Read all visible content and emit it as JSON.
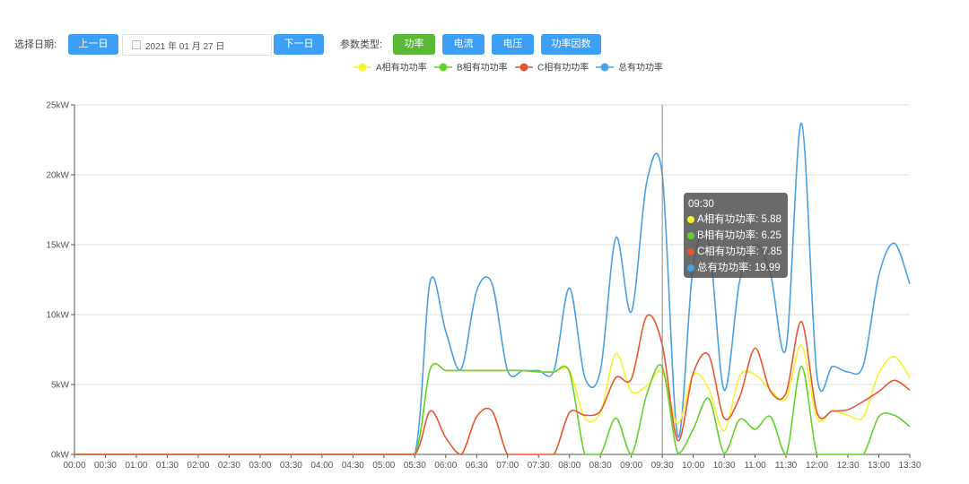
{
  "toolbar": {
    "date_label": "选择日期:",
    "prev_label": "上一日",
    "date_value": "2021 年 01 月 27 日",
    "next_label": "下一日",
    "param_label": "参数类型:",
    "types": [
      {
        "label": "功率",
        "active": true
      },
      {
        "label": "电流",
        "active": false
      },
      {
        "label": "电压",
        "active": false
      },
      {
        "label": "功率因数",
        "active": false
      }
    ]
  },
  "tooltip": {
    "time": "09:30",
    "rows": [
      "A相有功功率: 5.88",
      "B相有功功率: 6.25",
      "C相有功功率: 7.85",
      "总有功功率: 19.99"
    ]
  },
  "colors": {
    "A": "#f7f02c",
    "B": "#63d12c",
    "C": "#e8542d",
    "total": "#4aa0e0",
    "active_button": "#5bb834",
    "button": "#3d9ff5"
  },
  "chart_data": {
    "type": "line",
    "title": "",
    "xlabel": "",
    "ylabel": "",
    "ylim": [
      0,
      25
    ],
    "yticks": [
      "0kW",
      "5kW",
      "10kW",
      "15kW",
      "20kW",
      "25kW"
    ],
    "yunit": "kW",
    "grid": true,
    "legend_position": "top-center",
    "x": [
      "00:00",
      "00:30",
      "01:00",
      "01:30",
      "02:00",
      "02:30",
      "03:00",
      "03:30",
      "04:00",
      "04:30",
      "05:00",
      "05:30",
      "05:45",
      "06:00",
      "06:15",
      "06:30",
      "06:45",
      "07:00",
      "07:15",
      "07:30",
      "07:45",
      "08:00",
      "08:15",
      "08:30",
      "08:45",
      "09:00",
      "09:15",
      "09:30",
      "09:45",
      "10:00",
      "10:15",
      "10:30",
      "10:45",
      "11:00",
      "11:15",
      "11:30",
      "11:45",
      "12:00",
      "12:15",
      "12:30",
      "12:45",
      "13:00",
      "13:15",
      "13:30"
    ],
    "xticks": [
      "00:00",
      "00:30",
      "01:00",
      "01:30",
      "02:00",
      "02:30",
      "03:00",
      "03:30",
      "04:00",
      "04:30",
      "05:00",
      "05:30",
      "06:00",
      "06:30",
      "07:00",
      "07:30",
      "08:00",
      "08:30",
      "09:00",
      "09:30",
      "10:00",
      "10:30",
      "11:00",
      "11:30",
      "12:00",
      "12:30",
      "13:00",
      "13:30"
    ],
    "series": [
      {
        "name": "A相有功功率",
        "color": "#f7f02c",
        "values": [
          0,
          0,
          0,
          0,
          0,
          0,
          0,
          0,
          0,
          0,
          0,
          0,
          6.1,
          6.0,
          6.0,
          6.0,
          6.0,
          6.0,
          6.0,
          5.9,
          5.9,
          6.0,
          2.6,
          3.0,
          7.2,
          4.5,
          4.9,
          5.88,
          2.2,
          5.7,
          4.7,
          1.7,
          5.6,
          5.7,
          4.6,
          4.0,
          7.8,
          2.6,
          3.1,
          2.8,
          2.7,
          5.8,
          7.0,
          5.5
        ]
      },
      {
        "name": "B相有功功率",
        "color": "#63d12c",
        "values": [
          0,
          0,
          0,
          0,
          0,
          0,
          0,
          0,
          0,
          0,
          0,
          0,
          6.1,
          6.0,
          6.0,
          6.0,
          6.0,
          6.0,
          6.0,
          5.9,
          5.9,
          5.9,
          0,
          0,
          2.6,
          0,
          4.3,
          6.25,
          0.1,
          1.8,
          4.0,
          0.1,
          2.5,
          1.8,
          2.7,
          0,
          6.3,
          0,
          0,
          0,
          0,
          2.7,
          2.8,
          2.0
        ]
      },
      {
        "name": "C相有功功率",
        "color": "#e8542d",
        "values": [
          0,
          0,
          0,
          0,
          0,
          0,
          0,
          0,
          0,
          0,
          0,
          0,
          3.1,
          1.2,
          0,
          2.7,
          3.1,
          0,
          0,
          0,
          0,
          3.0,
          2.8,
          3.1,
          5.5,
          5.4,
          9.9,
          7.85,
          1.0,
          5.8,
          7.1,
          2.6,
          4.1,
          7.6,
          4.5,
          4.4,
          9.5,
          3.0,
          3.1,
          3.2,
          3.8,
          4.5,
          5.3,
          4.6
        ]
      },
      {
        "name": "总有功功率",
        "color": "#4aa0e0",
        "values": [
          0,
          0,
          0,
          0,
          0,
          0,
          0,
          0,
          0,
          0,
          0,
          0,
          12.4,
          8.8,
          6.1,
          11.7,
          12.2,
          6.0,
          6.0,
          6.0,
          6.0,
          11.9,
          5.5,
          6.0,
          15.5,
          10.2,
          19.5,
          19.99,
          1.3,
          13.5,
          15.2,
          4.6,
          12.4,
          15.0,
          12.9,
          7.6,
          23.7,
          5.6,
          6.3,
          5.9,
          6.4,
          12.8,
          15.1,
          12.2
        ]
      }
    ]
  }
}
